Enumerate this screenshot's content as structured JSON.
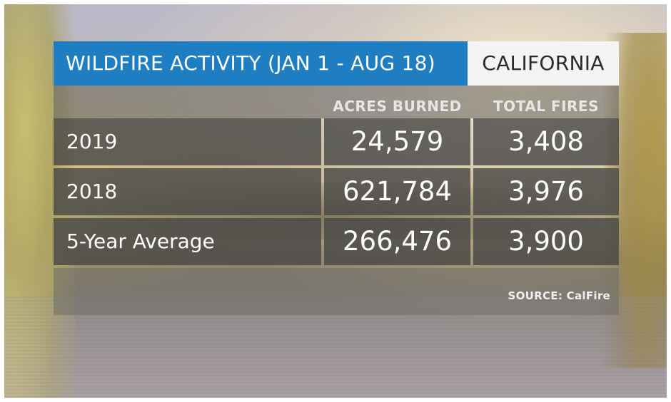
{
  "title": "WILDFIRE ACTIVITY (JAN 1 - AUG 18)",
  "region": "CALIFORNIA",
  "columns": {
    "acres": "ACRES BURNED",
    "fires": "TOTAL FIRES"
  },
  "rows": [
    {
      "label": "2019",
      "acres": "24,579",
      "fires": "3,408"
    },
    {
      "label": "2018",
      "acres": "621,784",
      "fires": "3,976"
    },
    {
      "label": "5-Year Average",
      "acres": "266,476",
      "fires": "3,900"
    }
  ],
  "source": "SOURCE: CalFire",
  "colors": {
    "title_bar": "#1f7ec1",
    "region_box": "#f4f4f4",
    "table_cell": "#464646"
  }
}
